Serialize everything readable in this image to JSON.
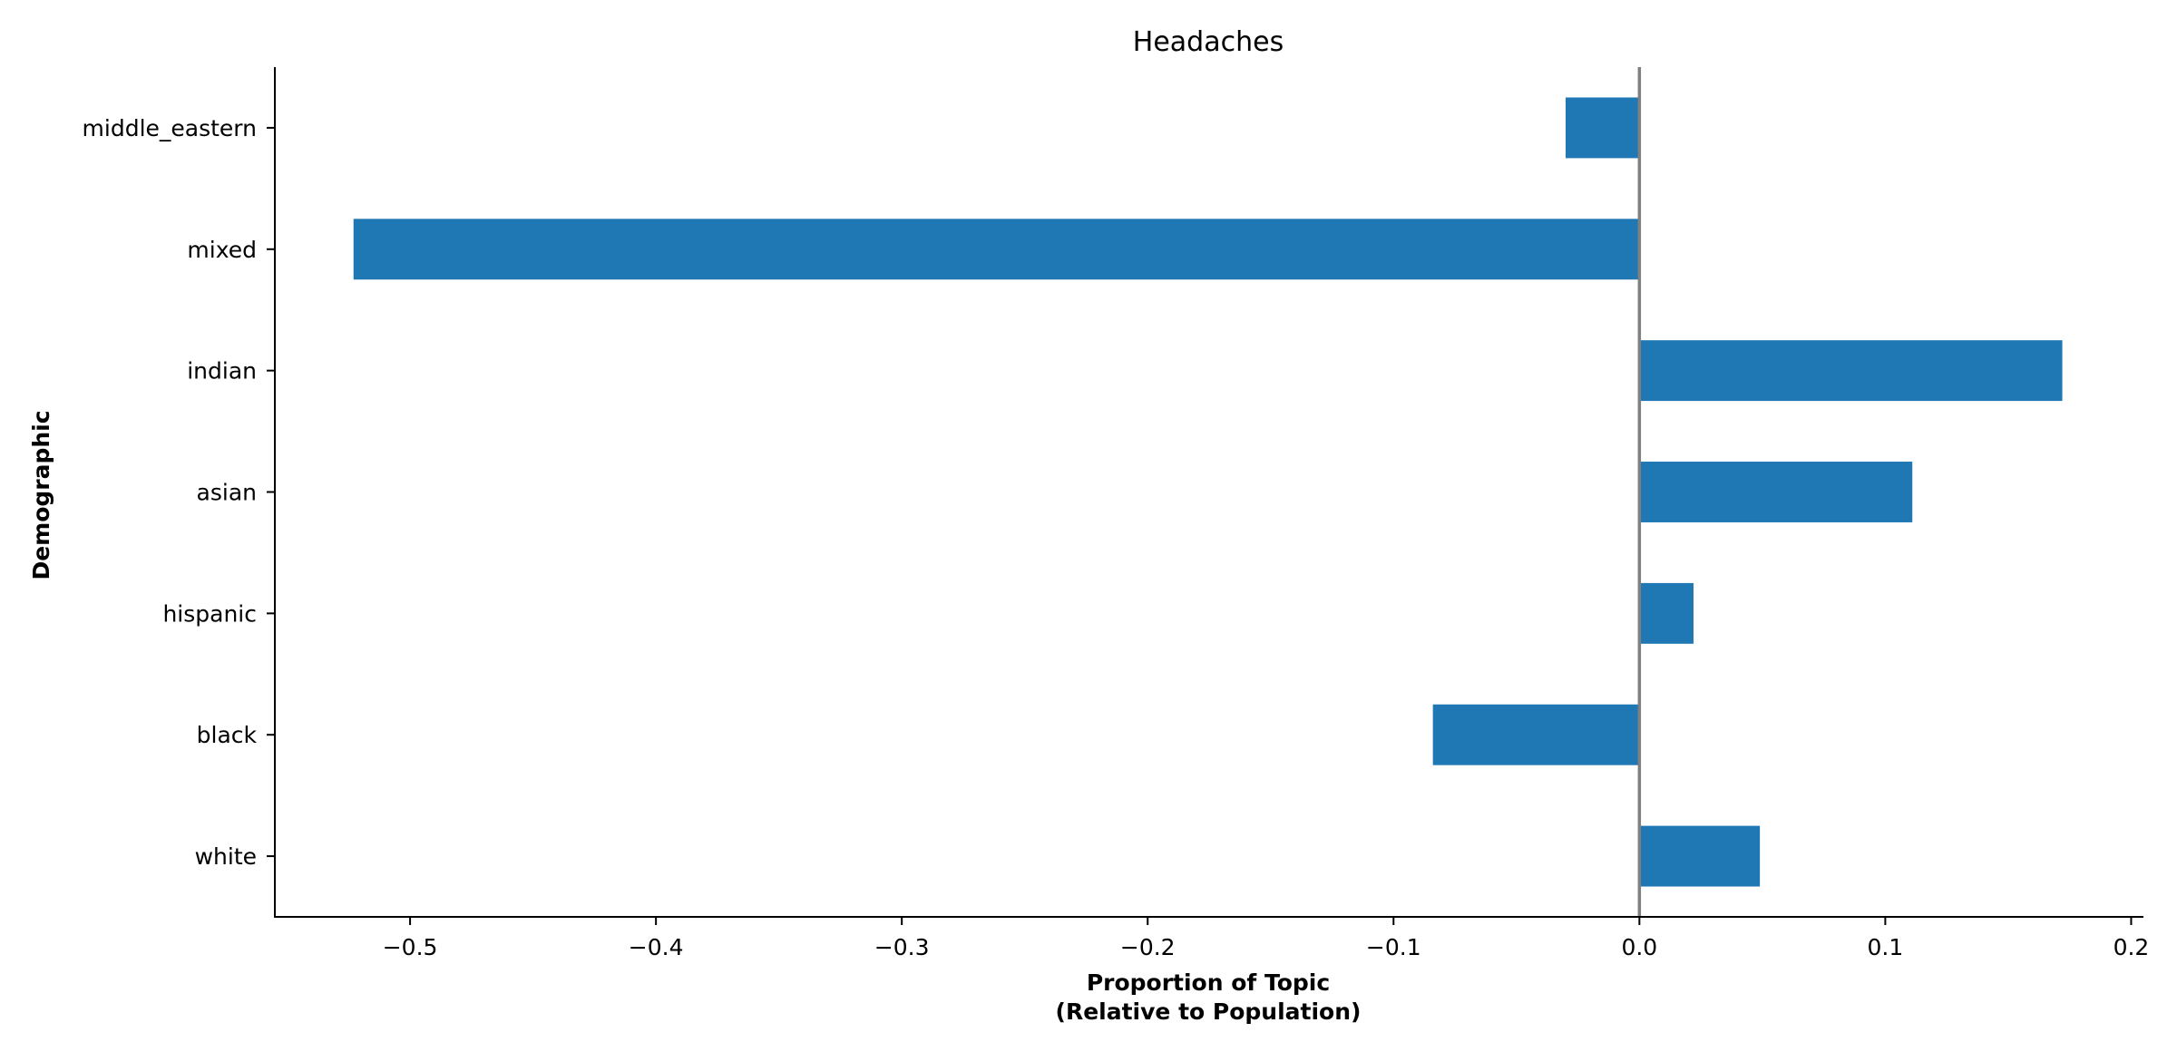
{
  "chart_data": {
    "type": "bar",
    "orientation": "horizontal",
    "title": "Headaches",
    "xlabel": [
      "Proportion of Topic",
      "(Relative to Population)"
    ],
    "ylabel": "Demographic",
    "categories": [
      "white",
      "black",
      "hispanic",
      "asian",
      "indian",
      "mixed",
      "middle_eastern"
    ],
    "values": [
      0.049,
      -0.084,
      0.022,
      0.111,
      0.172,
      -0.523,
      -0.03
    ],
    "xlim": [
      -0.555,
      0.205
    ],
    "xticks": [
      -0.5,
      -0.4,
      -0.3,
      -0.2,
      -0.1,
      0.0,
      0.1,
      0.2
    ],
    "xtick_labels": [
      "−0.5",
      "−0.4",
      "−0.3",
      "−0.2",
      "−0.1",
      "0.0",
      "0.1",
      "0.2"
    ],
    "zero_line": true,
    "grid": false,
    "legend": "none",
    "colors": {
      "bar": "#1f77b4",
      "zero_line": "#808080",
      "axis": "#000000"
    }
  }
}
